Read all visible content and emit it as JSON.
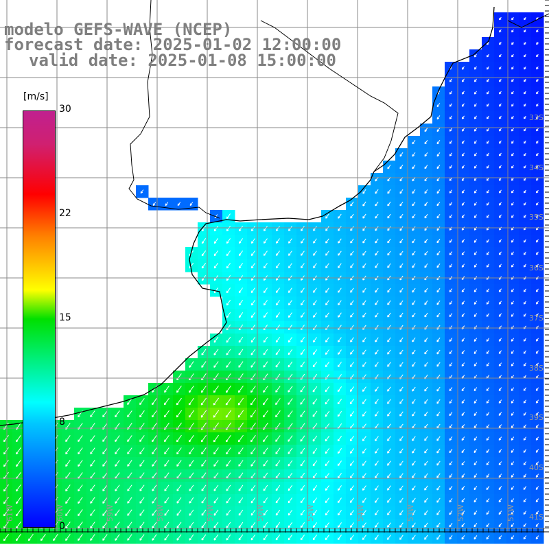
{
  "title": {
    "line1": "modelo GEFS-WAVE (NCEP)",
    "line2": "forecast date: 2025-01-02 12:00:00",
    "line3": "valid date: 2025-01-08 15:00:00"
  },
  "colorbar": {
    "unit": "[m/s]",
    "ticks": [
      "30",
      "22",
      "15",
      "8",
      "0"
    ],
    "range": [
      0,
      30
    ],
    "colors": [
      "#0000ff",
      "#00c8ff",
      "#00ffff",
      "#00e000",
      "#ffff00",
      "#ff8000",
      "#ff0000",
      "#c0208f"
    ]
  },
  "map": {
    "lat_labels": [
      "33S",
      "34S",
      "35S",
      "36S",
      "37S",
      "38S",
      "39S",
      "40S",
      "41S"
    ],
    "lon_labels": [
      "61W",
      "60W",
      "59W",
      "58W",
      "57W",
      "56W",
      "55W",
      "54W",
      "53W",
      "52W",
      "51W"
    ],
    "land_color": "#ffffff",
    "grid_color": "#8a8a8a",
    "arrow_color": "#ffffff",
    "dominant_wind_direction": "from north-east"
  }
}
